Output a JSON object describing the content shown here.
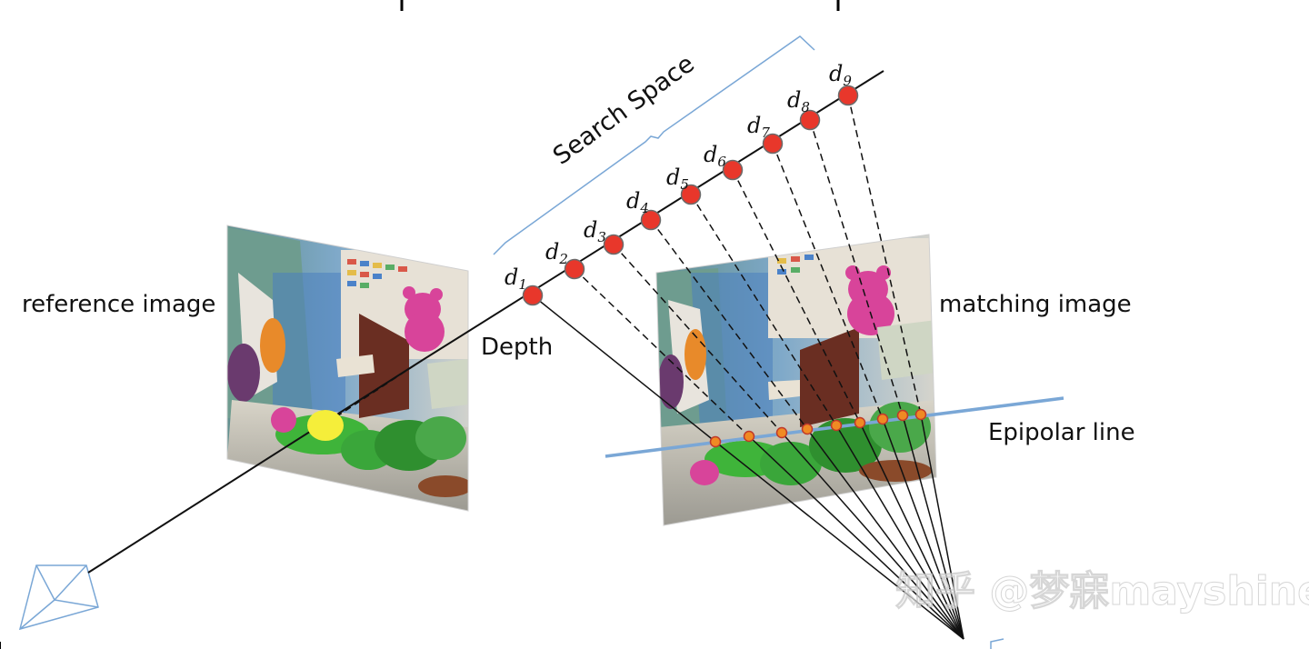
{
  "labels": {
    "reference_image": "reference image",
    "matching_image": "matching image",
    "depth": "Depth",
    "search_space": "Search Space",
    "epipolar_line": "Epipolar line"
  },
  "depth_samples": [
    {
      "name": "d",
      "sub": "1"
    },
    {
      "name": "d",
      "sub": "2"
    },
    {
      "name": "d",
      "sub": "3"
    },
    {
      "name": "d",
      "sub": "4"
    },
    {
      "name": "d",
      "sub": "5"
    },
    {
      "name": "d",
      "sub": "6"
    },
    {
      "name": "d",
      "sub": "7"
    },
    {
      "name": "d",
      "sub": "8"
    },
    {
      "name": "d",
      "sub": "9"
    }
  ],
  "watermark": "知乎 @梦寐mayshine",
  "colors": {
    "depth_point": "#e8372b",
    "epipolar_line": "#7aa7d6",
    "bracket": "#7aa7d6",
    "reference_pixel": "#f5ee3a",
    "match_point": "#f08a24"
  }
}
